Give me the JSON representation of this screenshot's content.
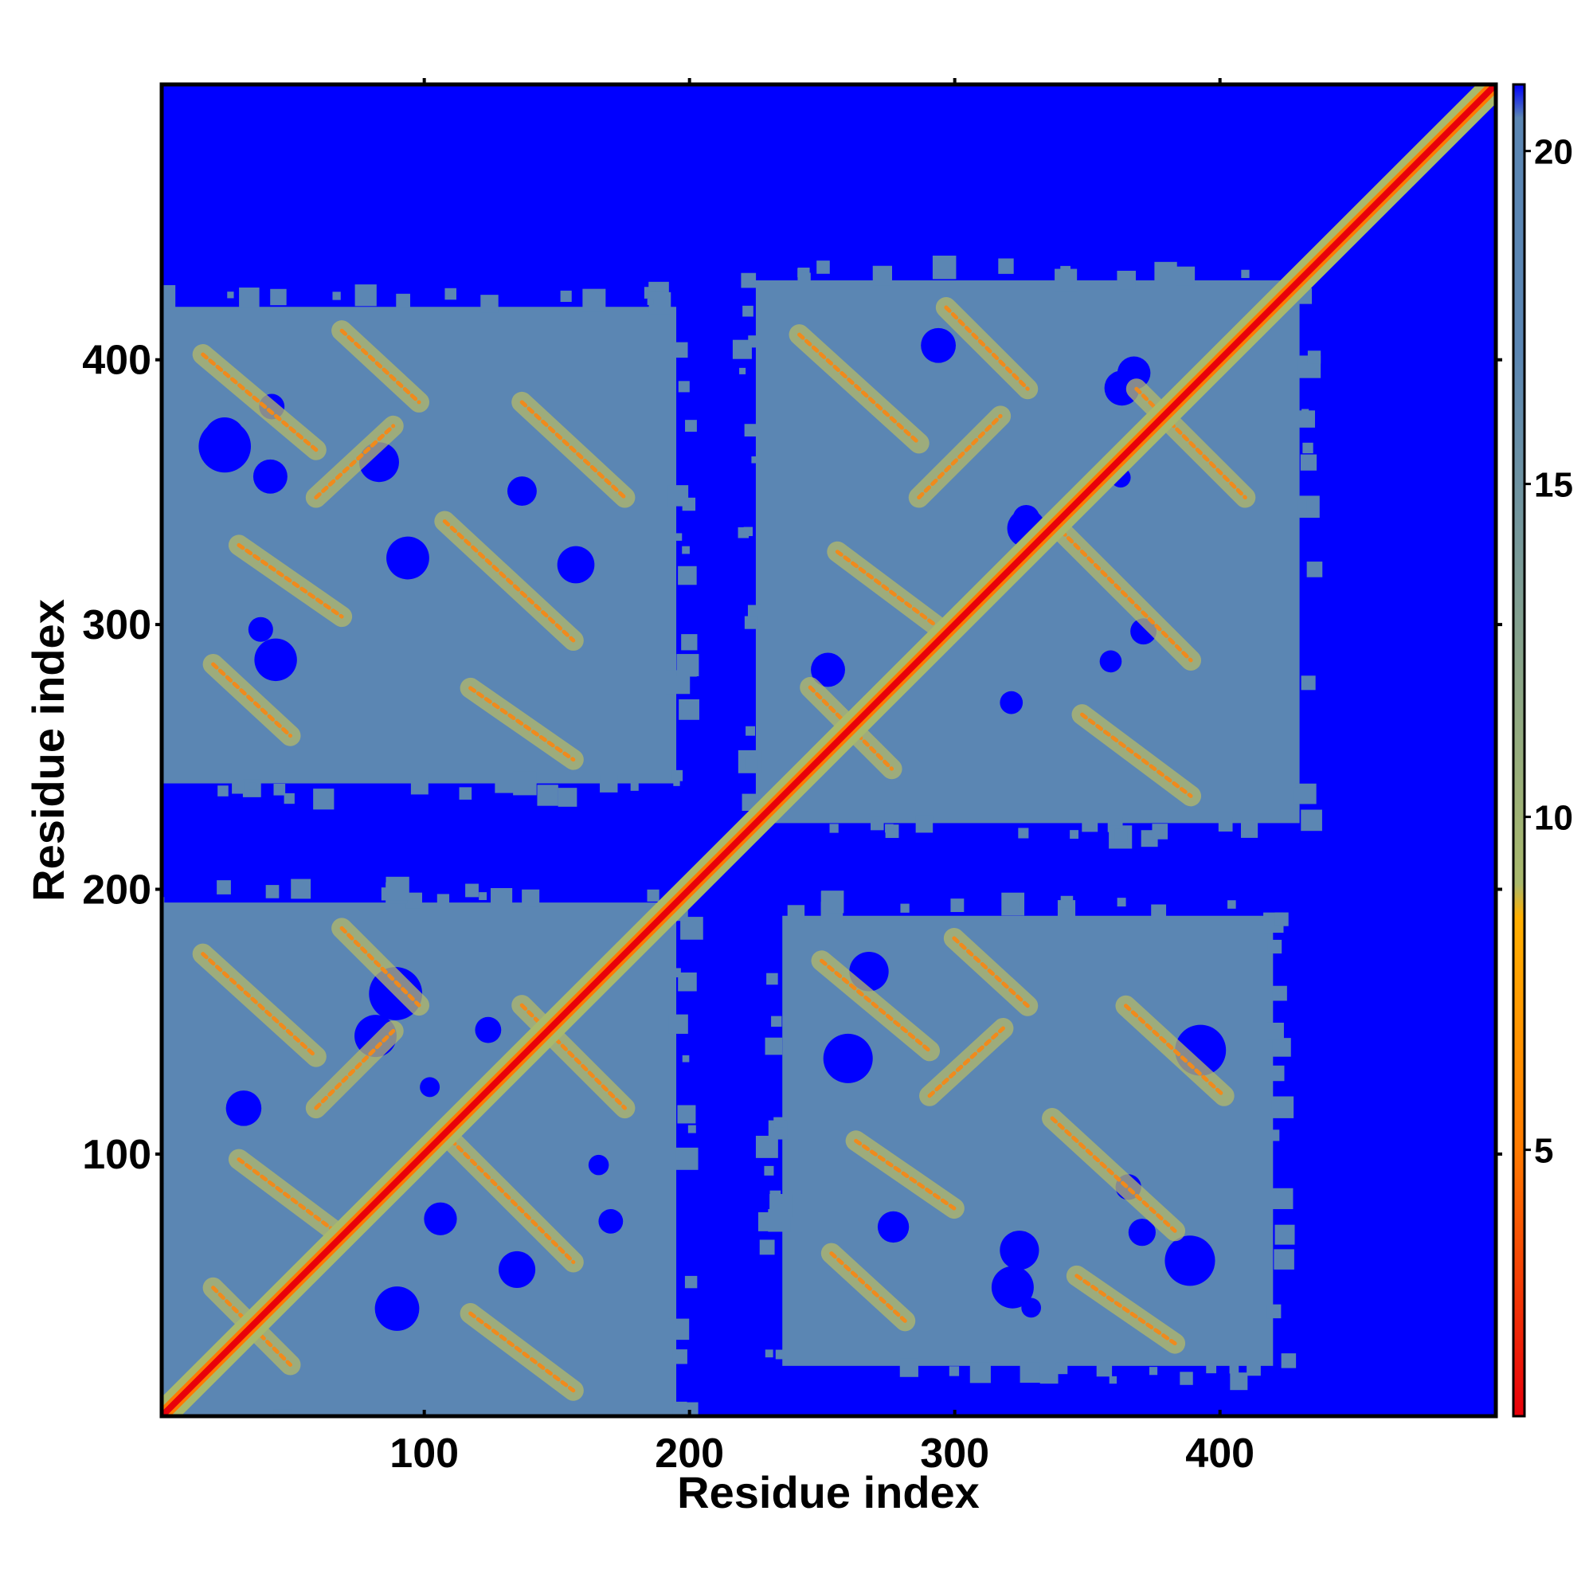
{
  "chart_data": {
    "type": "heatmap",
    "title": "",
    "xlabel": "Residue index",
    "ylabel": "Residue index",
    "xlim": [
      1,
      504
    ],
    "ylim": [
      1,
      504
    ],
    "x_ticks": [
      100,
      200,
      300,
      400
    ],
    "y_ticks": [
      100,
      200,
      300,
      400
    ],
    "colorbar": {
      "range": [
        1,
        21
      ],
      "ticks": [
        5,
        10,
        15,
        20
      ],
      "stops": [
        {
          "value": 1,
          "color": "#e8000b"
        },
        {
          "value": 5,
          "color": "#ff7a00"
        },
        {
          "value": 8.5,
          "color": "#ffb000"
        },
        {
          "value": 9,
          "color": "#a9b96c"
        },
        {
          "value": 17,
          "color": "#5b86b3"
        },
        {
          "value": 20.5,
          "color": "#5b86b3"
        },
        {
          "value": 21,
          "color": "#0000ff"
        }
      ]
    },
    "background_value": 21,
    "domain_blocks_value": 17,
    "domains": [
      {
        "x": [
          1,
          195
        ],
        "y": [
          1,
          195
        ]
      },
      {
        "x": [
          225,
          430
        ],
        "y": [
          225,
          430
        ]
      },
      {
        "x": [
          1,
          195
        ],
        "y": [
          240,
          420
        ]
      },
      {
        "x": [
          235,
          420
        ],
        "y": [
          20,
          190
        ]
      }
    ],
    "diagonal_band_value": 1,
    "diagonal_halo_value": 9
  },
  "colors": {
    "background": "#0000ff",
    "block": "#5b86b3",
    "contact": "#ffb000",
    "diagonal": "#e8000b",
    "frame": "#000000"
  }
}
